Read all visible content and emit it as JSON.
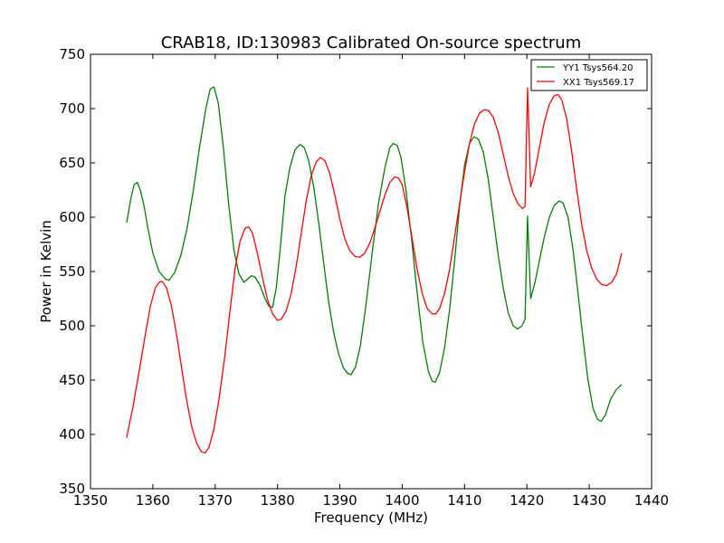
{
  "chart_data": {
    "type": "line",
    "title": "CRAB18, ID:130983 Calibrated On-source spectrum",
    "xlabel": "Frequency (MHz)",
    "ylabel": "Power in Kelvin",
    "xlim": [
      1350,
      1440
    ],
    "ylim": [
      350,
      750
    ],
    "xticks": [
      1350,
      1360,
      1370,
      1380,
      1390,
      1400,
      1410,
      1420,
      1430,
      1440
    ],
    "yticks": [
      350,
      400,
      450,
      500,
      550,
      600,
      650,
      700,
      750
    ],
    "grid": false,
    "legend_position": "top-right",
    "series": [
      {
        "name": "YY1 Tsys564.20",
        "color": "#008000",
        "points": [
          [
            1355.8,
            595
          ],
          [
            1356.5,
            618
          ],
          [
            1357.0,
            630
          ],
          [
            1357.5,
            632
          ],
          [
            1358.0,
            625
          ],
          [
            1358.6,
            610
          ],
          [
            1359.2,
            590
          ],
          [
            1360.0,
            567
          ],
          [
            1361.0,
            550
          ],
          [
            1362.0,
            543
          ],
          [
            1362.6,
            542
          ],
          [
            1363.5,
            549
          ],
          [
            1364.5,
            565
          ],
          [
            1365.5,
            590
          ],
          [
            1366.5,
            625
          ],
          [
            1367.5,
            665
          ],
          [
            1368.5,
            700
          ],
          [
            1369.2,
            718
          ],
          [
            1369.8,
            720
          ],
          [
            1370.5,
            705
          ],
          [
            1371.3,
            665
          ],
          [
            1372.2,
            610
          ],
          [
            1373.0,
            570
          ],
          [
            1373.8,
            548
          ],
          [
            1374.6,
            540
          ],
          [
            1375.2,
            543
          ],
          [
            1375.8,
            546
          ],
          [
            1376.4,
            545
          ],
          [
            1377.2,
            537
          ],
          [
            1378.0,
            525
          ],
          [
            1378.6,
            518
          ],
          [
            1379.2,
            517
          ],
          [
            1379.8,
            535
          ],
          [
            1380.5,
            575
          ],
          [
            1381.2,
            620
          ],
          [
            1382.0,
            646
          ],
          [
            1382.8,
            662
          ],
          [
            1383.6,
            667
          ],
          [
            1384.3,
            664
          ],
          [
            1385.0,
            652
          ],
          [
            1385.8,
            628
          ],
          [
            1386.6,
            595
          ],
          [
            1387.4,
            558
          ],
          [
            1388.2,
            522
          ],
          [
            1389.0,
            494
          ],
          [
            1389.8,
            474
          ],
          [
            1390.6,
            461
          ],
          [
            1391.3,
            456
          ],
          [
            1391.8,
            455
          ],
          [
            1392.5,
            462
          ],
          [
            1393.3,
            482
          ],
          [
            1394.2,
            520
          ],
          [
            1395.2,
            568
          ],
          [
            1396.2,
            613
          ],
          [
            1397.2,
            645
          ],
          [
            1398.0,
            664
          ],
          [
            1398.6,
            668
          ],
          [
            1399.2,
            666
          ],
          [
            1399.8,
            655
          ],
          [
            1400.6,
            625
          ],
          [
            1401.5,
            580
          ],
          [
            1402.4,
            530
          ],
          [
            1403.3,
            485
          ],
          [
            1404.2,
            458
          ],
          [
            1404.8,
            449
          ],
          [
            1405.3,
            448
          ],
          [
            1406.0,
            457
          ],
          [
            1406.8,
            480
          ],
          [
            1407.6,
            515
          ],
          [
            1408.4,
            560
          ],
          [
            1409.2,
            610
          ],
          [
            1410.0,
            648
          ],
          [
            1410.8,
            668
          ],
          [
            1411.5,
            674
          ],
          [
            1412.2,
            672
          ],
          [
            1413.0,
            660
          ],
          [
            1413.8,
            635
          ],
          [
            1414.6,
            600
          ],
          [
            1415.4,
            565
          ],
          [
            1416.2,
            535
          ],
          [
            1417.0,
            512
          ],
          [
            1417.8,
            500
          ],
          [
            1418.5,
            497
          ],
          [
            1419.2,
            500
          ],
          [
            1419.7,
            506
          ],
          [
            1420.1,
            601
          ],
          [
            1420.6,
            525
          ],
          [
            1421.3,
            540
          ],
          [
            1422.0,
            560
          ],
          [
            1422.8,
            582
          ],
          [
            1423.6,
            600
          ],
          [
            1424.4,
            611
          ],
          [
            1425.2,
            615
          ],
          [
            1425.8,
            613
          ],
          [
            1426.6,
            600
          ],
          [
            1427.4,
            570
          ],
          [
            1428.2,
            530
          ],
          [
            1429.0,
            488
          ],
          [
            1429.8,
            450
          ],
          [
            1430.6,
            424
          ],
          [
            1431.3,
            414
          ],
          [
            1431.9,
            412
          ],
          [
            1432.6,
            418
          ],
          [
            1433.4,
            432
          ],
          [
            1434.3,
            441
          ],
          [
            1435.2,
            446
          ]
        ]
      },
      {
        "name": "XX1 Tsys569.17",
        "color": "#ff0000",
        "points": [
          [
            1355.8,
            397
          ],
          [
            1356.8,
            425
          ],
          [
            1357.8,
            458
          ],
          [
            1358.8,
            492
          ],
          [
            1359.6,
            518
          ],
          [
            1360.4,
            535
          ],
          [
            1361.0,
            540
          ],
          [
            1361.5,
            541
          ],
          [
            1362.2,
            535
          ],
          [
            1363.0,
            518
          ],
          [
            1363.8,
            492
          ],
          [
            1364.6,
            462
          ],
          [
            1365.4,
            432
          ],
          [
            1366.2,
            408
          ],
          [
            1367.0,
            392
          ],
          [
            1367.8,
            384
          ],
          [
            1368.4,
            383
          ],
          [
            1369.0,
            388
          ],
          [
            1369.8,
            405
          ],
          [
            1370.6,
            432
          ],
          [
            1371.5,
            470
          ],
          [
            1372.4,
            515
          ],
          [
            1373.2,
            553
          ],
          [
            1374.0,
            578
          ],
          [
            1374.8,
            590
          ],
          [
            1375.4,
            591
          ],
          [
            1376.0,
            585
          ],
          [
            1376.8,
            566
          ],
          [
            1377.6,
            544
          ],
          [
            1378.4,
            524
          ],
          [
            1379.2,
            511
          ],
          [
            1380.0,
            505
          ],
          [
            1380.6,
            506
          ],
          [
            1381.4,
            514
          ],
          [
            1382.2,
            530
          ],
          [
            1383.0,
            555
          ],
          [
            1383.8,
            585
          ],
          [
            1384.6,
            615
          ],
          [
            1385.4,
            638
          ],
          [
            1386.2,
            651
          ],
          [
            1386.9,
            655
          ],
          [
            1387.6,
            652
          ],
          [
            1388.4,
            640
          ],
          [
            1389.2,
            620
          ],
          [
            1390.0,
            598
          ],
          [
            1390.8,
            580
          ],
          [
            1391.6,
            569
          ],
          [
            1392.4,
            564
          ],
          [
            1393.2,
            563
          ],
          [
            1394.0,
            567
          ],
          [
            1394.8,
            576
          ],
          [
            1395.6,
            590
          ],
          [
            1396.4,
            605
          ],
          [
            1397.2,
            620
          ],
          [
            1398.0,
            632
          ],
          [
            1398.8,
            637
          ],
          [
            1399.4,
            636
          ],
          [
            1400.0,
            630
          ],
          [
            1400.8,
            608
          ],
          [
            1401.6,
            580
          ],
          [
            1402.4,
            552
          ],
          [
            1403.2,
            530
          ],
          [
            1404.0,
            516
          ],
          [
            1404.8,
            511
          ],
          [
            1405.4,
            511
          ],
          [
            1406.0,
            516
          ],
          [
            1406.8,
            530
          ],
          [
            1407.6,
            552
          ],
          [
            1408.4,
            582
          ],
          [
            1409.2,
            612
          ],
          [
            1410.0,
            642
          ],
          [
            1410.8,
            668
          ],
          [
            1411.6,
            686
          ],
          [
            1412.4,
            696
          ],
          [
            1413.2,
            699
          ],
          [
            1413.9,
            698
          ],
          [
            1414.6,
            692
          ],
          [
            1415.4,
            678
          ],
          [
            1416.2,
            658
          ],
          [
            1417.0,
            638
          ],
          [
            1417.8,
            622
          ],
          [
            1418.6,
            612
          ],
          [
            1419.3,
            608
          ],
          [
            1419.7,
            610
          ],
          [
            1420.1,
            719
          ],
          [
            1420.6,
            628
          ],
          [
            1421.2,
            640
          ],
          [
            1422.0,
            664
          ],
          [
            1422.8,
            688
          ],
          [
            1423.6,
            704
          ],
          [
            1424.4,
            712
          ],
          [
            1425.0,
            713
          ],
          [
            1425.6,
            708
          ],
          [
            1426.4,
            690
          ],
          [
            1427.2,
            660
          ],
          [
            1428.0,
            625
          ],
          [
            1428.8,
            593
          ],
          [
            1429.6,
            569
          ],
          [
            1430.4,
            553
          ],
          [
            1431.2,
            543
          ],
          [
            1432.0,
            538
          ],
          [
            1432.8,
            537
          ],
          [
            1433.6,
            540
          ],
          [
            1434.4,
            548
          ],
          [
            1435.2,
            567
          ]
        ]
      }
    ]
  }
}
